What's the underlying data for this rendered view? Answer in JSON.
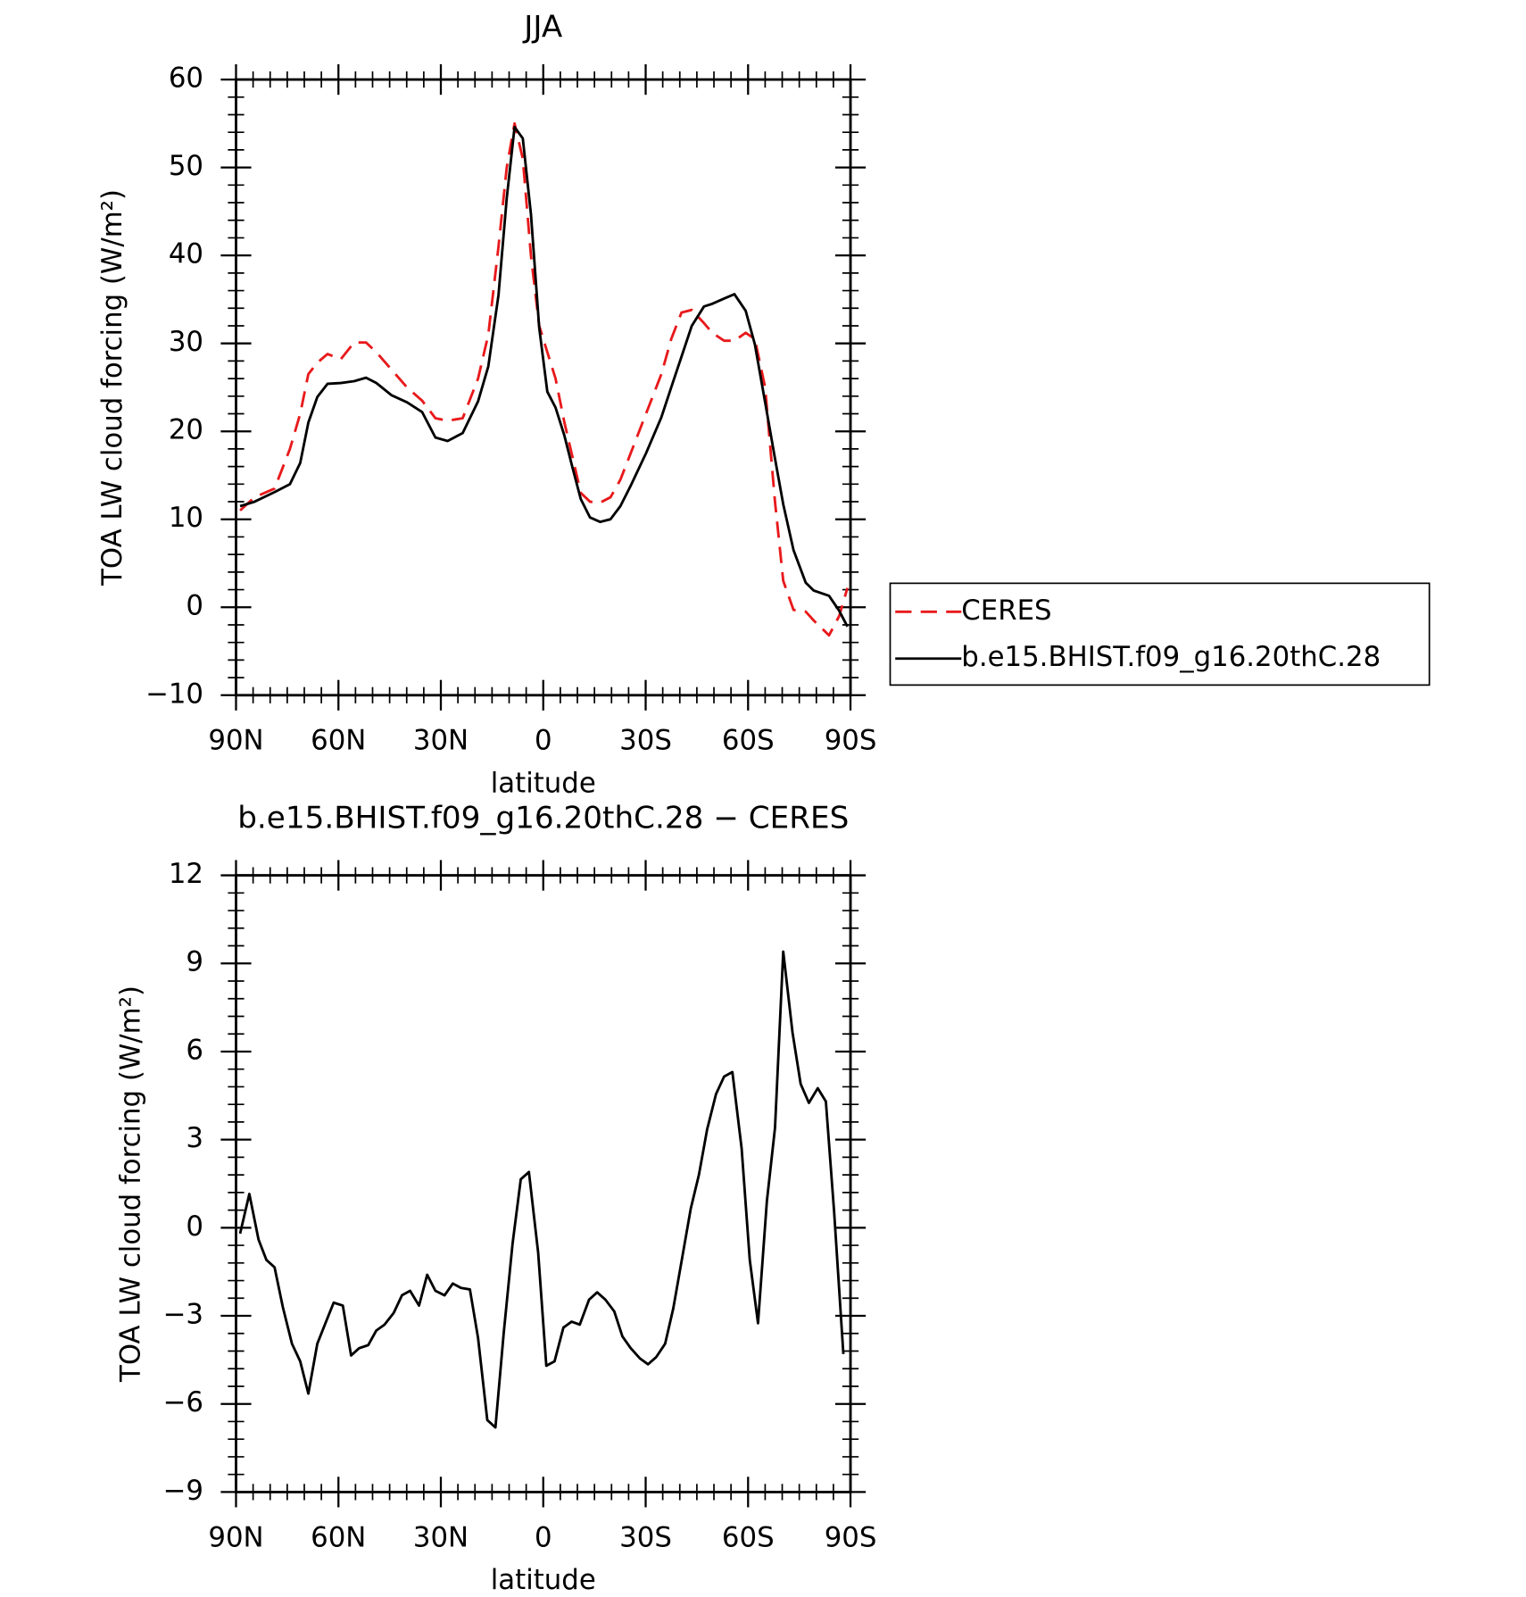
{
  "chart_data": [
    {
      "type": "line",
      "title": "JJA",
      "xlabel": "latitude",
      "ylabel": "TOA LW cloud forcing (W/m²)",
      "xlim": [
        90,
        -90
      ],
      "xticks": [
        {
          "value": 90,
          "label": "90N"
        },
        {
          "value": 60,
          "label": "60N"
        },
        {
          "value": 30,
          "label": "30N"
        },
        0,
        {
          "value": -30,
          "label": "30S"
        },
        {
          "value": -60,
          "label": "60S"
        },
        {
          "value": -90,
          "label": "90S"
        }
      ],
      "ylim": [
        -10,
        60
      ],
      "yticks": [
        {
          "value": -10,
          "label": "−10"
        },
        0,
        10,
        20,
        30,
        40,
        50,
        60
      ],
      "legend": "right",
      "x": [
        88.8,
        84.6,
        78.7,
        74.2,
        71.2,
        68.8,
        66.2,
        63.2,
        59.3,
        55.4,
        51.9,
        48.9,
        44.4,
        39.9,
        35.5,
        31.6,
        28.0,
        23.6,
        19.1,
        16.1,
        13.1,
        10.7,
        8.4,
        6.0,
        3.6,
        1.2,
        -1.2,
        -3.6,
        -6.2,
        -8.6,
        -11.0,
        -13.7,
        -16.7,
        -19.7,
        -22.6,
        -25.6,
        -30.1,
        -34.6,
        -37.5,
        -40.5,
        -43.5,
        -47.1,
        -49.5,
        -53.0,
        -56.0,
        -59.3,
        -62.0,
        -65.0,
        -67.9,
        -70.3,
        -73.3,
        -76.9,
        -79.2,
        -83.7,
        -86.7,
        -89.1
      ],
      "series": [
        {
          "name": "CERES",
          "color": "#e8191b",
          "dashed": true,
          "values": [
            11,
            12.5,
            13.5,
            18,
            22,
            26.5,
            27.8,
            28.8,
            28.2,
            30.1,
            30.1,
            29,
            27,
            25,
            23.5,
            21.5,
            21.2,
            21.5,
            26,
            31,
            41,
            50,
            55,
            51,
            40,
            32,
            29,
            26,
            21,
            17,
            13,
            12,
            11.9,
            12.5,
            14.5,
            17.5,
            22,
            26.5,
            30.5,
            33.5,
            33.8,
            32.3,
            31.2,
            30.3,
            30.3,
            31.2,
            30.5,
            25,
            12,
            3,
            -0.3,
            -0.5,
            -1.5,
            -3.2,
            -1,
            2.2
          ]
        },
        {
          "name": "b.e15.BHIST.f09_g16.20thC.28",
          "color": "#000000",
          "dashed": false,
          "values": [
            11.5,
            12,
            13.1,
            14,
            16.4,
            21,
            23.9,
            25.4,
            25.5,
            25.7,
            26.1,
            25.5,
            24.1,
            23.3,
            22.2,
            19.3,
            18.9,
            19.8,
            23.4,
            27.4,
            35.5,
            46.5,
            54.6,
            53.3,
            44.7,
            31.8,
            24.5,
            22.7,
            19.5,
            15.8,
            12.3,
            10.2,
            9.7,
            10,
            11.5,
            13.8,
            17.5,
            21.6,
            25,
            28.5,
            32,
            34.2,
            34.5,
            35.1,
            35.6,
            33.7,
            29.9,
            23.3,
            16.9,
            11.7,
            6.5,
            2.8,
            1.9,
            1.3,
            -0.4,
            -2.2
          ]
        }
      ]
    },
    {
      "type": "line",
      "title": "b.e15.BHIST.f09_g16.20thC.28 − CERES",
      "xlabel": "latitude",
      "ylabel": "TOA LW cloud forcing (W/m²)",
      "xlim": [
        90,
        -90
      ],
      "xticks": [
        {
          "value": 90,
          "label": "90N"
        },
        {
          "value": 60,
          "label": "60N"
        },
        {
          "value": 30,
          "label": "30N"
        },
        0,
        {
          "value": -30,
          "label": "30S"
        },
        {
          "value": -60,
          "label": "60S"
        },
        {
          "value": -90,
          "label": "90S"
        }
      ],
      "ylim": [
        -9,
        12
      ],
      "yticks": [
        {
          "value": -9,
          "label": "−9"
        },
        {
          "value": -6,
          "label": "−6"
        },
        {
          "value": -3,
          "label": "−3"
        },
        0,
        3,
        6,
        9,
        12
      ],
      "color": "#000000",
      "x": [
        88.8,
        86.1,
        83.4,
        81.1,
        78.7,
        76.3,
        73.6,
        71.2,
        68.8,
        66.2,
        63.8,
        61.4,
        58.7,
        56.3,
        53.9,
        51.3,
        48.9,
        46.5,
        43.8,
        41.4,
        39.0,
        36.4,
        34.0,
        31.6,
        28.9,
        26.5,
        24.1,
        21.5,
        19.1,
        16.4,
        14.0,
        11.6,
        9.0,
        6.6,
        4.2,
        1.5,
        -0.9,
        -3.3,
        -5.9,
        -8.3,
        -10.7,
        -13.4,
        -15.8,
        -18.2,
        -20.8,
        -23.2,
        -25.6,
        -28.3,
        -30.7,
        -33.1,
        -35.7,
        -38.1,
        -40.5,
        -43.2,
        -45.6,
        -48.0,
        -50.6,
        -53.0,
        -55.4,
        -58.1,
        -60.5,
        -62.9,
        -65.5,
        -67.9,
        -70.3,
        -73.0,
        -75.4,
        -77.8,
        -80.4,
        -82.8,
        -85.2,
        -87.9
      ],
      "values": [
        -0.2,
        1.15,
        -0.4,
        -1.1,
        -1.35,
        -2.7,
        -3.95,
        -4.55,
        -5.65,
        -3.95,
        -3.25,
        -2.55,
        -2.65,
        -4.35,
        -4.1,
        -4,
        -3.5,
        -3.3,
        -2.9,
        -2.3,
        -2.15,
        -2.65,
        -1.6,
        -2.15,
        -2.3,
        -1.9,
        -2.05,
        -2.1,
        -3.75,
        -6.55,
        -6.8,
        -3.6,
        -0.55,
        1.65,
        1.9,
        -0.85,
        -4.7,
        -4.55,
        -3.4,
        -3.2,
        -3.3,
        -2.45,
        -2.2,
        -2.45,
        -2.85,
        -3.7,
        -4.1,
        -4.45,
        -4.65,
        -4.4,
        -3.95,
        -2.75,
        -1.15,
        0.65,
        1.8,
        3.35,
        4.55,
        5.15,
        5.3,
        2.7,
        -1.1,
        -3.25,
        0.9,
        3.4,
        9.4,
        6.65,
        4.9,
        4.25,
        4.75,
        4.3,
        0.55,
        -4.3
      ]
    }
  ]
}
